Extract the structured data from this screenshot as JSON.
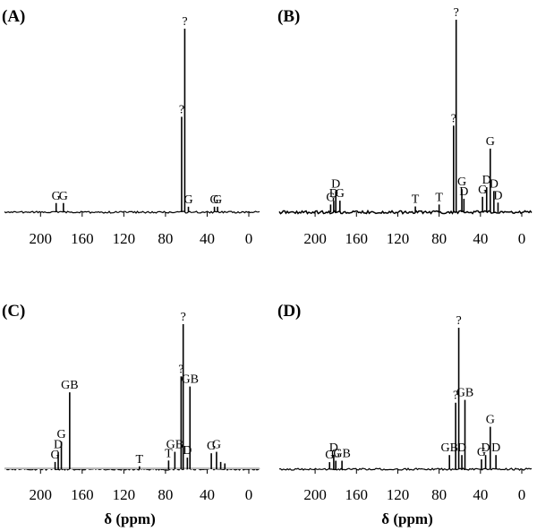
{
  "chart_data": [
    {
      "type": "nmr_spectrum",
      "panel_label": "(A)",
      "xlabel": "",
      "x_reversed": true,
      "xlim": [
        220,
        0
      ],
      "xticks": [
        200,
        160,
        120,
        80,
        40,
        0
      ],
      "tick_labels": [
        "200",
        "160",
        "120",
        "80",
        "40",
        "0"
      ],
      "peaks": [
        {
          "ppm": 185,
          "h": 0.05,
          "label": "G"
        },
        {
          "ppm": 178,
          "h": 0.05,
          "label": "G"
        },
        {
          "ppm": 64.5,
          "h": 0.52,
          "label": "?"
        },
        {
          "ppm": 61.5,
          "h": 1.0,
          "label": "?"
        },
        {
          "ppm": 58,
          "h": 0.03,
          "label": "G"
        },
        {
          "ppm": 33,
          "h": 0.03,
          "label": "G"
        },
        {
          "ppm": 30,
          "h": 0.03,
          "label": "G"
        }
      ]
    },
    {
      "type": "nmr_spectrum",
      "panel_label": "(B)",
      "xlabel": "",
      "x_reversed": true,
      "xlim": [
        220,
        0
      ],
      "xticks": [
        200,
        160,
        120,
        80,
        40,
        0
      ],
      "tick_labels": [
        "200",
        "160",
        "120",
        "80",
        "40",
        "0"
      ],
      "peaks": [
        {
          "ppm": 185,
          "h": 0.04,
          "label": "G"
        },
        {
          "ppm": 182,
          "h": 0.06,
          "label": "D"
        },
        {
          "ppm": 180,
          "h": 0.11,
          "label": "D"
        },
        {
          "ppm": 176,
          "h": 0.06,
          "label": "G"
        },
        {
          "ppm": 103,
          "h": 0.03,
          "label": "T"
        },
        {
          "ppm": 80,
          "h": 0.04,
          "label": "T"
        },
        {
          "ppm": 66,
          "h": 0.45,
          "label": "?"
        },
        {
          "ppm": 63.5,
          "h": 1.0,
          "label": "?"
        },
        {
          "ppm": 58,
          "h": 0.12,
          "label": "G"
        },
        {
          "ppm": 56,
          "h": 0.07,
          "label": "D"
        },
        {
          "ppm": 38,
          "h": 0.08,
          "label": "G"
        },
        {
          "ppm": 34,
          "h": 0.13,
          "label": "D"
        },
        {
          "ppm": 30.5,
          "h": 0.33,
          "label": "G"
        },
        {
          "ppm": 27,
          "h": 0.11,
          "label": "D"
        },
        {
          "ppm": 23,
          "h": 0.05,
          "label": "D"
        }
      ]
    },
    {
      "type": "nmr_spectrum",
      "panel_label": "(C)",
      "xlabel": "δ (ppm)",
      "x_reversed": true,
      "xlim": [
        220,
        0
      ],
      "xticks": [
        200,
        160,
        120,
        80,
        40,
        0
      ],
      "tick_labels": [
        "200",
        "160",
        "120",
        "80",
        "40",
        "0"
      ],
      "peaks": [
        {
          "ppm": 186,
          "h": 0.05,
          "label": "G"
        },
        {
          "ppm": 183,
          "h": 0.12,
          "label": "D"
        },
        {
          "ppm": 180,
          "h": 0.19,
          "label": "G"
        },
        {
          "ppm": 172,
          "h": 0.53,
          "label": "GB"
        },
        {
          "ppm": 105,
          "h": 0.02,
          "label": "T"
        },
        {
          "ppm": 77,
          "h": 0.06,
          "label": "T"
        },
        {
          "ppm": 71,
          "h": 0.12,
          "label": "GB"
        },
        {
          "ppm": 65,
          "h": 0.64,
          "label": "?"
        },
        {
          "ppm": 63,
          "h": 1.0,
          "label": "?"
        },
        {
          "ppm": 59,
          "h": 0.08,
          "label": "D"
        },
        {
          "ppm": 56.5,
          "h": 0.57,
          "label": "GB"
        },
        {
          "ppm": 36,
          "h": 0.11,
          "label": "G"
        },
        {
          "ppm": 31,
          "h": 0.12,
          "label": "G"
        },
        {
          "ppm": 27,
          "h": 0.05,
          "label": ""
        },
        {
          "ppm": 23,
          "h": 0.04,
          "label": ""
        }
      ]
    },
    {
      "type": "nmr_spectrum",
      "panel_label": "(D)",
      "xlabel": "δ (ppm)",
      "x_reversed": true,
      "xlim": [
        220,
        0
      ],
      "xticks": [
        200,
        160,
        120,
        80,
        40,
        0
      ],
      "tick_labels": [
        "200",
        "160",
        "120",
        "80",
        "40",
        "0"
      ],
      "peaks": [
        {
          "ppm": 186,
          "h": 0.05,
          "label": "G"
        },
        {
          "ppm": 182,
          "h": 0.1,
          "label": "D"
        },
        {
          "ppm": 180,
          "h": 0.06,
          "label": "G"
        },
        {
          "ppm": 174,
          "h": 0.06,
          "label": "GB"
        },
        {
          "ppm": 70,
          "h": 0.1,
          "label": "GB"
        },
        {
          "ppm": 64,
          "h": 0.47,
          "label": "?"
        },
        {
          "ppm": 61,
          "h": 1.0,
          "label": "?"
        },
        {
          "ppm": 58,
          "h": 0.1,
          "label": "D"
        },
        {
          "ppm": 55,
          "h": 0.49,
          "label": "GB"
        },
        {
          "ppm": 39,
          "h": 0.07,
          "label": "G"
        },
        {
          "ppm": 35,
          "h": 0.1,
          "label": "D"
        },
        {
          "ppm": 30.5,
          "h": 0.3,
          "label": "G"
        },
        {
          "ppm": 25,
          "h": 0.1,
          "label": "D"
        }
      ]
    }
  ]
}
